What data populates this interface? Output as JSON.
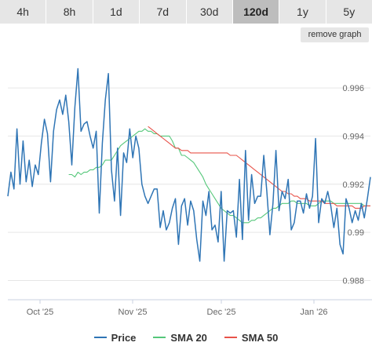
{
  "tabs": [
    {
      "label": "4h",
      "active": false
    },
    {
      "label": "8h",
      "active": false
    },
    {
      "label": "1d",
      "active": false
    },
    {
      "label": "7d",
      "active": false
    },
    {
      "label": "30d",
      "active": false
    },
    {
      "label": "120d",
      "active": true
    },
    {
      "label": "1y",
      "active": false
    },
    {
      "label": "5y",
      "active": false
    }
  ],
  "remove_graph_label": "remove graph",
  "chart_data": {
    "type": "line",
    "x_ticks": [
      "Oct '25",
      "Nov '25",
      "Dec '25",
      "Jan '26"
    ],
    "y_ticks": [
      "0.988",
      "0.99",
      "0.992",
      "0.994",
      "0.996"
    ],
    "ylim": [
      0.9872,
      0.9976
    ],
    "grid": true,
    "legend_position": "bottom",
    "series": [
      {
        "name": "Price",
        "color": "#2f75b5",
        "values": [
          0.9915,
          0.9925,
          0.9918,
          0.9943,
          0.992,
          0.9938,
          0.9921,
          0.993,
          0.9919,
          0.9928,
          0.9924,
          0.9937,
          0.9947,
          0.9941,
          0.9921,
          0.9942,
          0.9951,
          0.9955,
          0.9949,
          0.9957,
          0.9946,
          0.9928,
          0.9952,
          0.9968,
          0.9942,
          0.9945,
          0.9946,
          0.994,
          0.9935,
          0.9942,
          0.9908,
          0.9937,
          0.9955,
          0.9966,
          0.9926,
          0.9913,
          0.9935,
          0.9907,
          0.9933,
          0.9929,
          0.9943,
          0.9931,
          0.994,
          0.9935,
          0.992,
          0.9915,
          0.9912,
          0.9915,
          0.9918,
          0.9918,
          0.9902,
          0.9909,
          0.9901,
          0.9904,
          0.991,
          0.9914,
          0.9895,
          0.9911,
          0.9914,
          0.9903,
          0.9913,
          0.9909,
          0.9897,
          0.9888,
          0.9913,
          0.9907,
          0.9917,
          0.9901,
          0.9903,
          0.9896,
          0.9917,
          0.9888,
          0.9909,
          0.9908,
          0.9909,
          0.9898,
          0.9922,
          0.9897,
          0.9934,
          0.9905,
          0.9924,
          0.9912,
          0.9915,
          0.9915,
          0.9932,
          0.9917,
          0.9899,
          0.9912,
          0.9934,
          0.9909,
          0.9917,
          0.9914,
          0.9922,
          0.9901,
          0.9904,
          0.9913,
          0.9913,
          0.9908,
          0.9916,
          0.991,
          0.9915,
          0.9939,
          0.9904,
          0.9914,
          0.9912,
          0.9917,
          0.9911,
          0.9902,
          0.991,
          0.9895,
          0.9891,
          0.9914,
          0.991,
          0.9904,
          0.9909,
          0.9905,
          0.9912,
          0.9906,
          0.9914,
          0.9923
        ]
      },
      {
        "name": "SMA 20",
        "color": "#55c77a",
        "values": [
          0.9924,
          0.9924,
          0.9923,
          0.9925,
          0.9924,
          0.9925,
          0.9925,
          0.9926,
          0.9926,
          0.9927,
          0.9927,
          0.9928,
          0.993,
          0.993,
          0.993,
          0.9932,
          0.9934,
          0.9936,
          0.9937,
          0.9938,
          0.9939,
          0.994,
          0.9941,
          0.9942,
          0.9942,
          0.9943,
          0.9942,
          0.9942,
          0.9941,
          0.9941,
          0.994,
          0.994,
          0.994,
          0.994,
          0.9938,
          0.9935,
          0.9935,
          0.9932,
          0.9932,
          0.9931,
          0.993,
          0.9929,
          0.9927,
          0.9925,
          0.9923,
          0.992,
          0.9918,
          0.9916,
          0.9914,
          0.9912,
          0.991,
          0.9909,
          0.9908,
          0.9907,
          0.9907,
          0.9906,
          0.9905,
          0.9904,
          0.9904,
          0.9904,
          0.9905,
          0.9905,
          0.9906,
          0.9906,
          0.9907,
          0.9908,
          0.9909,
          0.991,
          0.991,
          0.9911,
          0.9912,
          0.9912,
          0.9912,
          0.9913,
          0.9913,
          0.9912,
          0.9912,
          0.9912,
          0.9912,
          0.9911,
          0.9911,
          0.9911,
          0.9912,
          0.9913,
          0.9913,
          0.9913,
          0.9913,
          0.9912,
          0.9912,
          0.9912,
          0.9912,
          0.9912,
          0.9912,
          0.9912,
          0.9912,
          0.9912,
          0.9912,
          0.9911,
          0.9911,
          0.9911
        ]
      },
      {
        "name": "SMA 50",
        "color": "#e8534a",
        "values": [
          0.9944,
          0.9943,
          0.9942,
          0.9941,
          0.994,
          0.9939,
          0.9938,
          0.9937,
          0.9936,
          0.9935,
          0.9935,
          0.9934,
          0.9934,
          0.9934,
          0.9933,
          0.9933,
          0.9933,
          0.9933,
          0.9933,
          0.9933,
          0.9933,
          0.9933,
          0.9933,
          0.9933,
          0.9933,
          0.9933,
          0.9933,
          0.9932,
          0.9932,
          0.9932,
          0.9931,
          0.993,
          0.9929,
          0.9928,
          0.9927,
          0.9926,
          0.9925,
          0.9924,
          0.9923,
          0.9922,
          0.9921,
          0.992,
          0.9919,
          0.9918,
          0.9917,
          0.9917,
          0.9916,
          0.9916,
          0.9915,
          0.9915,
          0.9914,
          0.9914,
          0.9914,
          0.9913,
          0.9913,
          0.9913,
          0.9913,
          0.9913,
          0.9912,
          0.9912,
          0.9912,
          0.9912,
          0.9911,
          0.9911,
          0.9911,
          0.9911,
          0.9911,
          0.9911,
          0.991,
          0.991,
          0.991,
          0.9911,
          0.9911,
          0.9911
        ]
      }
    ]
  }
}
